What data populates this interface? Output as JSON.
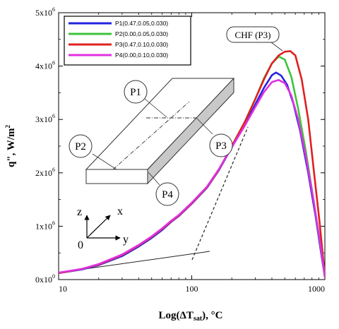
{
  "chart_data": {
    "type": "line",
    "xscale": "log",
    "xlim": [
      10,
      1000
    ],
    "ylim": [
      0,
      5000000
    ],
    "xlabel": "Log(ΔT_sat), °C",
    "ylabel": "q\", W/m²",
    "x_ticks": [
      {
        "value": 10,
        "label": "10"
      },
      {
        "value": 100,
        "label": "100"
      },
      {
        "value": 1000,
        "label": "1000"
      }
    ],
    "y_ticks": [
      {
        "value": 0,
        "base": "0x10",
        "exp": "0"
      },
      {
        "value": 1000000,
        "base": "1x10",
        "exp": "6"
      },
      {
        "value": 2000000,
        "base": "2x10",
        "exp": "6"
      },
      {
        "value": 3000000,
        "base": "3x10",
        "exp": "6"
      },
      {
        "value": 4000000,
        "base": "4x10",
        "exp": "6"
      },
      {
        "value": 5000000,
        "base": "5x10",
        "exp": "6"
      }
    ],
    "legend_position": "top-left",
    "series": [
      {
        "name": "P1(0.47,0.05,0.030)",
        "color": "#2424e0",
        "points": [
          [
            10,
            120000
          ],
          [
            15,
            190000
          ],
          [
            20,
            270000
          ],
          [
            30,
            440000
          ],
          [
            40,
            620000
          ],
          [
            50,
            780000
          ],
          [
            60,
            930000
          ],
          [
            70,
            1080000
          ],
          [
            80,
            1190000
          ],
          [
            100,
            1420000
          ],
          [
            130,
            1720000
          ],
          [
            160,
            2050000
          ],
          [
            200,
            2480000
          ],
          [
            250,
            2900000
          ],
          [
            300,
            3280000
          ],
          [
            350,
            3600000
          ],
          [
            400,
            3830000
          ],
          [
            430,
            3880000
          ],
          [
            470,
            3820000
          ],
          [
            520,
            3650000
          ],
          [
            580,
            3300000
          ],
          [
            650,
            2800000
          ],
          [
            750,
            2000000
          ],
          [
            850,
            1200000
          ],
          [
            950,
            400000
          ],
          [
            1000,
            50000
          ]
        ]
      },
      {
        "name": "P2(0.00,0.05,0.030)",
        "color": "#3cc43c",
        "points": [
          [
            10,
            120000
          ],
          [
            15,
            200000
          ],
          [
            20,
            280000
          ],
          [
            30,
            460000
          ],
          [
            40,
            640000
          ],
          [
            50,
            800000
          ],
          [
            60,
            950000
          ],
          [
            70,
            1090000
          ],
          [
            80,
            1200000
          ],
          [
            100,
            1430000
          ],
          [
            130,
            1730000
          ],
          [
            160,
            2060000
          ],
          [
            200,
            2500000
          ],
          [
            250,
            2950000
          ],
          [
            300,
            3380000
          ],
          [
            350,
            3780000
          ],
          [
            400,
            4050000
          ],
          [
            450,
            4180000
          ],
          [
            500,
            4120000
          ],
          [
            560,
            3800000
          ],
          [
            630,
            3200000
          ],
          [
            720,
            2400000
          ],
          [
            820,
            1500000
          ],
          [
            930,
            600000
          ],
          [
            1000,
            50000
          ]
        ]
      },
      {
        "name": "P3(0.47,0.10,0.030)",
        "color": "#e02020",
        "points": [
          [
            10,
            120000
          ],
          [
            15,
            200000
          ],
          [
            20,
            280000
          ],
          [
            30,
            460000
          ],
          [
            40,
            640000
          ],
          [
            50,
            800000
          ],
          [
            60,
            950000
          ],
          [
            70,
            1090000
          ],
          [
            80,
            1200000
          ],
          [
            100,
            1430000
          ],
          [
            130,
            1730000
          ],
          [
            160,
            2060000
          ],
          [
            200,
            2500000
          ],
          [
            250,
            2950000
          ],
          [
            300,
            3380000
          ],
          [
            350,
            3760000
          ],
          [
            400,
            4050000
          ],
          [
            450,
            4200000
          ],
          [
            500,
            4270000
          ],
          [
            550,
            4280000
          ],
          [
            600,
            4200000
          ],
          [
            670,
            3750000
          ],
          [
            750,
            3000000
          ],
          [
            830,
            2000000
          ],
          [
            910,
            1100000
          ],
          [
            970,
            400000
          ],
          [
            1000,
            50000
          ]
        ]
      },
      {
        "name": "P4(0.00,0.10,0.030)",
        "color": "#e030e0",
        "points": [
          [
            10,
            130000
          ],
          [
            15,
            200000
          ],
          [
            20,
            290000
          ],
          [
            30,
            470000
          ],
          [
            40,
            650000
          ],
          [
            50,
            810000
          ],
          [
            60,
            960000
          ],
          [
            70,
            1100000
          ],
          [
            80,
            1210000
          ],
          [
            100,
            1440000
          ],
          [
            130,
            1740000
          ],
          [
            160,
            2070000
          ],
          [
            200,
            2480000
          ],
          [
            250,
            2880000
          ],
          [
            300,
            3230000
          ],
          [
            350,
            3520000
          ],
          [
            400,
            3700000
          ],
          [
            450,
            3740000
          ],
          [
            500,
            3680000
          ],
          [
            560,
            3450000
          ],
          [
            630,
            3000000
          ],
          [
            720,
            2300000
          ],
          [
            820,
            1500000
          ],
          [
            920,
            700000
          ],
          [
            1000,
            50000
          ]
        ]
      }
    ],
    "annotations": {
      "chf_label": "CHF (P3)",
      "callouts": [
        "P1",
        "P2",
        "P3",
        "P4"
      ],
      "axis_triad": {
        "z": "z",
        "x": "x",
        "y": "y",
        "origin": "0"
      }
    }
  }
}
